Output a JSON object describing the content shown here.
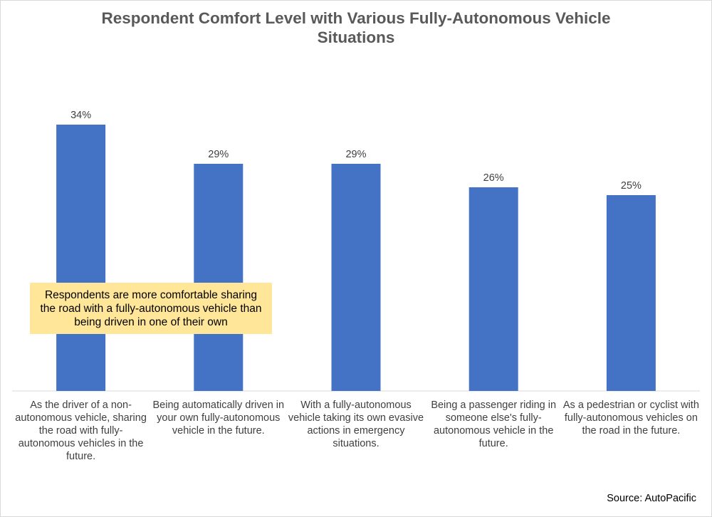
{
  "chart_data": {
    "type": "bar",
    "title": "Respondent Comfort Level with Various Fully-Autonomous Vehicle Situations",
    "xlabel": "",
    "ylabel": "",
    "ylim": [
      0,
      40
    ],
    "grid": false,
    "categories": [
      "As the driver of a non-autonomous vehicle, sharing the road with fully-autonomous vehicles in the future.",
      "Being automatically driven in your own fully-autonomous vehicle in the future.",
      "With a fully-autonomous vehicle taking its own evasive actions in emergency situations.",
      "Being a passenger riding in someone else's fully-autonomous vehicle in the future.",
      "As a pedestrian or cyclist with fully-autonomous vehicles on the road in the future."
    ],
    "values": [
      34,
      29,
      29,
      26,
      25
    ],
    "value_labels": [
      "34%",
      "29%",
      "29%",
      "26%",
      "25%"
    ],
    "bar_color": "#4472c4",
    "annotation": "Respondents are more comfortable sharing the road with a fully-autonomous vehicle than being driven in one of their own",
    "source": "Source: AutoPacific"
  }
}
